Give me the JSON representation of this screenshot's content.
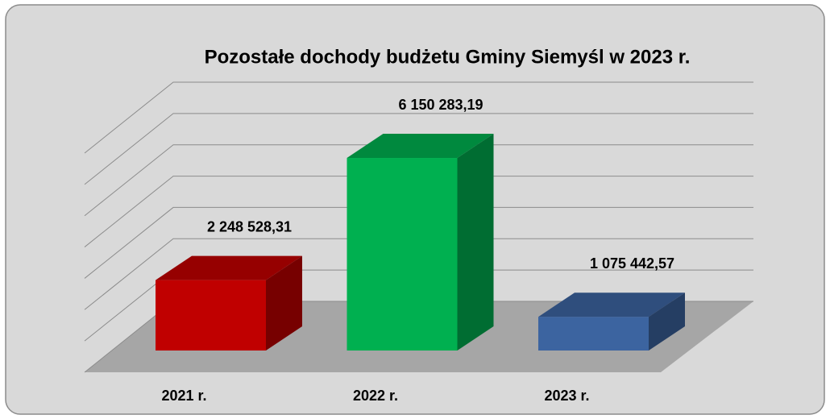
{
  "chart_data": {
    "type": "bar3d",
    "title": "Pozostałe dochody budżetu Gminy Siemyśl w 2023 r.",
    "categories": [
      "2021 r.",
      "2022 r.",
      "2023 r."
    ],
    "values": [
      2248528.31,
      6150283.19,
      1075442.57
    ],
    "value_labels": [
      "2 248 528,31",
      "6 150 283,19",
      "1 075 442,57"
    ],
    "colors": [
      "#c00000",
      "#00b050",
      "#3c64a0"
    ],
    "ylim": [
      0,
      7000000
    ],
    "yticks": [
      0,
      1000000,
      2000000,
      3000000,
      4000000,
      5000000,
      6000000,
      7000000
    ],
    "grid": true
  }
}
